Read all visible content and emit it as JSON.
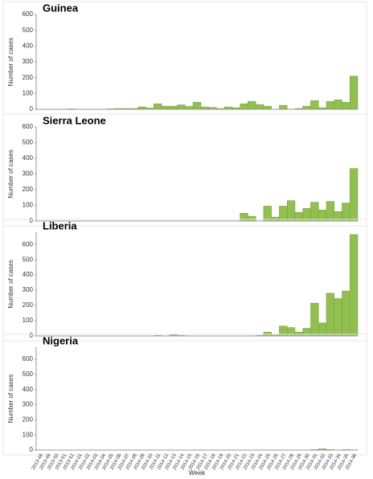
{
  "chart_data": [
    {
      "type": "bar",
      "title": "Guinea",
      "y_label": "Number of cases",
      "color": "#92c050",
      "values": [
        0,
        0,
        0,
        0,
        3,
        0,
        0,
        0,
        0,
        3,
        5,
        5,
        5,
        15,
        8,
        35,
        20,
        20,
        28,
        18,
        45,
        15,
        12,
        5,
        15,
        10,
        35,
        50,
        30,
        20,
        0,
        25,
        0,
        5,
        20,
        55,
        10,
        50,
        60,
        45,
        210
      ],
      "ylim": [
        0,
        600
      ],
      "yticks": [
        0,
        100,
        200,
        300,
        400,
        500,
        600
      ]
    },
    {
      "type": "bar",
      "title": "Sierra Leone",
      "y_label": "Number of cases",
      "color": "#92c050",
      "values": [
        0,
        0,
        0,
        0,
        0,
        0,
        0,
        0,
        0,
        0,
        0,
        0,
        0,
        0,
        0,
        0,
        0,
        0,
        0,
        0,
        0,
        0,
        0,
        0,
        0,
        0,
        50,
        30,
        0,
        95,
        25,
        95,
        130,
        55,
        80,
        120,
        70,
        125,
        60,
        115,
        335
      ],
      "ylim": [
        0,
        600
      ],
      "yticks": [
        0,
        100,
        200,
        300,
        400,
        500,
        600
      ]
    },
    {
      "type": "bar",
      "title": "Liberia",
      "y_label": "Number of cases",
      "color": "#92c050",
      "values": [
        0,
        0,
        0,
        0,
        0,
        0,
        0,
        0,
        0,
        0,
        0,
        0,
        0,
        0,
        0,
        3,
        0,
        8,
        3,
        0,
        0,
        0,
        0,
        0,
        0,
        0,
        0,
        0,
        3,
        25,
        10,
        65,
        55,
        25,
        50,
        215,
        85,
        280,
        245,
        295,
        665
      ],
      "ylim": [
        0,
        680
      ],
      "yticks": [
        0,
        100,
        200,
        300,
        400,
        500,
        600
      ]
    },
    {
      "type": "bar",
      "title": "Nigeria",
      "y_label": "Number of cases",
      "x_label": "Week",
      "color": "#92c050",
      "categories": [
        "2013-48",
        "2013-49",
        "2013-50",
        "2013-51",
        "2013-52",
        "2014-01",
        "2014-02",
        "2014-03",
        "2014-04",
        "2014-05",
        "2014-06",
        "2014-07",
        "2014-08",
        "2014-09",
        "2014-10",
        "2014-11",
        "2014-12",
        "2014-13",
        "2014-14",
        "2014-15",
        "2014-16",
        "2014-17",
        "2014-18",
        "2014-19",
        "2014-20",
        "2014-21",
        "2014-22",
        "2014-23",
        "2014-24",
        "2014-25",
        "2014-26",
        "2014-27",
        "2014-28",
        "2014-29",
        "2014-30",
        "2014-31",
        "2014-32",
        "2014-33",
        "2014-34",
        "2014-35",
        "2014-36"
      ],
      "values": [
        0,
        0,
        0,
        0,
        0,
        0,
        0,
        0,
        0,
        0,
        0,
        0,
        0,
        0,
        0,
        0,
        0,
        0,
        0,
        0,
        0,
        0,
        0,
        0,
        0,
        0,
        0,
        0,
        0,
        0,
        0,
        0,
        0,
        0,
        0,
        3,
        8,
        3,
        0,
        3,
        2
      ],
      "ylim": [
        0,
        680
      ],
      "yticks": [
        0,
        100,
        200,
        300,
        400,
        500,
        600
      ]
    }
  ]
}
